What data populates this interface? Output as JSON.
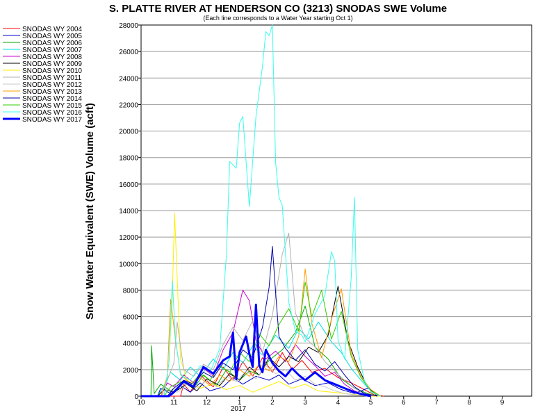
{
  "chart_data": {
    "type": "line",
    "title": "S. PLATTE RIVER AT HENDERSON CO (3213) SNODAS SWE Volume",
    "subtitle": "(Each line corresponds to a Water Year starting Oct 1)",
    "ylabel": "Snow Water Equivalent (SWE) Volume (acft)",
    "xlabel": "",
    "ylim": [
      0,
      28000
    ],
    "yticks": [
      0,
      2000,
      4000,
      6000,
      8000,
      10000,
      12000,
      14000,
      16000,
      18000,
      20000,
      22000,
      24000,
      26000,
      28000
    ],
    "xlim": [
      10,
      21.9
    ],
    "xticks": [
      {
        "v": 10,
        "label": "10"
      },
      {
        "v": 11,
        "label": "11"
      },
      {
        "v": 12,
        "label": "12"
      },
      {
        "v": 13,
        "label": "1"
      },
      {
        "v": 14,
        "label": "2"
      },
      {
        "v": 15,
        "label": "3"
      },
      {
        "v": 16,
        "label": "4"
      },
      {
        "v": 17,
        "label": "5"
      },
      {
        "v": 18,
        "label": "6"
      },
      {
        "v": 19,
        "label": "7"
      },
      {
        "v": 20,
        "label": "8"
      },
      {
        "v": 21,
        "label": "9"
      }
    ],
    "xsublabel": "2017",
    "grid": "horizontal",
    "legend": "left",
    "series": [
      {
        "name": "SNODAS WY 2004",
        "color": "#ff0000",
        "width": 1,
        "x": [
          10,
          11.2,
          11.3,
          11.5,
          11.8,
          12.2,
          12.5,
          12.8,
          13.1,
          13.4,
          13.7,
          14.0,
          14.3,
          14.6,
          14.9,
          15.2,
          15.6,
          16.0,
          16.4,
          16.8,
          17.1,
          17.4
        ],
        "y": [
          0,
          0,
          900,
          300,
          1600,
          700,
          2200,
          1200,
          2600,
          1500,
          2900,
          1800,
          3300,
          2000,
          2700,
          1800,
          2100,
          1400,
          1000,
          500,
          100,
          0
        ]
      },
      {
        "name": "SNODAS WY 2005",
        "color": "#0000cc",
        "width": 1,
        "x": [
          10,
          10.5,
          10.6,
          10.9,
          11.2,
          11.5,
          11.8,
          12.1,
          12.5,
          12.8,
          13.1,
          13.5,
          13.9,
          14.2,
          14.5,
          14.9,
          15.3,
          15.7,
          16.1,
          16.5,
          16.9,
          17.3
        ],
        "y": [
          0,
          0,
          600,
          200,
          800,
          300,
          1000,
          400,
          700,
          1400,
          900,
          1500,
          1200,
          1600,
          900,
          1300,
          800,
          1000,
          500,
          200,
          600,
          0
        ]
      },
      {
        "name": "SNODAS WY 2006",
        "color": "#00aa00",
        "width": 1,
        "x": [
          10,
          10.3,
          10.32,
          10.4,
          10.6,
          10.9,
          11.3,
          11.6,
          11.9,
          12.3,
          12.6,
          13.0,
          13.3,
          13.6,
          13.9,
          14.3,
          14.7,
          15.0,
          15.3,
          15.7,
          16.1,
          16.5,
          16.9,
          17.2
        ],
        "y": [
          0,
          0,
          3800,
          200,
          900,
          400,
          1200,
          600,
          1600,
          800,
          2000,
          1200,
          1900,
          1600,
          2700,
          3500,
          4800,
          6800,
          3700,
          2800,
          1300,
          600,
          200,
          0
        ]
      },
      {
        "name": "SNODAS WY 2007",
        "color": "#00dddd",
        "width": 1,
        "x": [
          10,
          10.5,
          10.7,
          10.9,
          11.2,
          11.5,
          11.8,
          12.2,
          12.5,
          12.8,
          13.1,
          13.4,
          13.7,
          14.1,
          14.5,
          14.8,
          15.1,
          15.4,
          15.8,
          16.1,
          16.4,
          16.7,
          17.0,
          17.3
        ],
        "y": [
          0,
          0,
          800,
          1800,
          1200,
          2200,
          1500,
          2800,
          2000,
          3300,
          2500,
          3800,
          3100,
          4600,
          3600,
          5100,
          4300,
          5600,
          4100,
          3300,
          2100,
          1200,
          400,
          0
        ]
      },
      {
        "name": "SNODAS WY 2008",
        "color": "#cc00cc",
        "width": 1,
        "x": [
          10,
          10.6,
          10.8,
          11.0,
          11.3,
          11.6,
          11.9,
          12.2,
          12.5,
          12.8,
          13.1,
          13.3,
          13.5,
          13.8,
          14.1,
          14.4,
          14.7,
          15.0,
          15.3,
          15.6,
          15.9,
          16.2,
          16.5,
          16.8,
          17.1
        ],
        "y": [
          0,
          0,
          1000,
          700,
          1600,
          1000,
          2100,
          1500,
          3500,
          4800,
          8000,
          7200,
          4200,
          2800,
          3400,
          2600,
          3900,
          3000,
          2300,
          1500,
          1800,
          900,
          400,
          100,
          0
        ]
      },
      {
        "name": "SNODAS WY 2009",
        "color": "#000000",
        "width": 1,
        "x": [
          10,
          10.5,
          10.7,
          11.0,
          11.4,
          11.7,
          12.0,
          12.4,
          12.7,
          13.0,
          13.3,
          13.6,
          13.9,
          14.2,
          14.5,
          14.8,
          15.1,
          15.4,
          15.7,
          16.0,
          16.3,
          16.6,
          16.9,
          17.2
        ],
        "y": [
          0,
          0,
          500,
          300,
          900,
          400,
          1300,
          800,
          1700,
          1200,
          2200,
          1600,
          2900,
          2200,
          3000,
          2600,
          3700,
          3300,
          4600,
          8300,
          4200,
          2200,
          700,
          0
        ]
      },
      {
        "name": "SNODAS WY 2010",
        "color": "#ffee00",
        "width": 1,
        "x": [
          10,
          10.7,
          10.85,
          10.95,
          11.02,
          11.1,
          11.2,
          11.4,
          11.8,
          12.2,
          12.6,
          13.0,
          13.4,
          13.8,
          14.2,
          14.6,
          15.0,
          15.4,
          15.8,
          16.2,
          16.6,
          17.0,
          17.3
        ],
        "y": [
          0,
          0,
          2500,
          7500,
          13800,
          9000,
          2800,
          1200,
          600,
          900,
          500,
          800,
          300,
          700,
          1100,
          600,
          900,
          400,
          300,
          200,
          100,
          0,
          0
        ]
      },
      {
        "name": "SNODAS WY 2011",
        "color": "#b0b0b0",
        "width": 1,
        "x": [
          10,
          10.6,
          10.8,
          11.0,
          11.1,
          11.3,
          11.6,
          11.9,
          12.2,
          12.5,
          12.8,
          13.1,
          13.4,
          13.7,
          14.0,
          14.3,
          14.5,
          14.7,
          15.0,
          15.3,
          15.6,
          15.9,
          16.2,
          16.5,
          16.8,
          17.2
        ],
        "y": [
          0,
          0,
          1200,
          2500,
          5600,
          2000,
          1500,
          2400,
          2000,
          3900,
          5200,
          4200,
          5700,
          3300,
          6100,
          10700,
          12300,
          6300,
          4400,
          3700,
          2600,
          1900,
          1200,
          600,
          200,
          0
        ]
      },
      {
        "name": "SNODAS WY 2012",
        "color": "#c8c8c8",
        "width": 1,
        "x": [
          10,
          10.6,
          10.8,
          11.1,
          11.4,
          11.7,
          12.0,
          12.3,
          12.6,
          12.9,
          13.2,
          13.5,
          13.8,
          14.1,
          14.4,
          14.7,
          15.0,
          15.3,
          15.6,
          15.9,
          16.2,
          16.5,
          16.9
        ],
        "y": [
          0,
          0,
          500,
          300,
          900,
          600,
          1200,
          700,
          1500,
          1100,
          1900,
          1300,
          2300,
          1700,
          2000,
          1200,
          1500,
          900,
          700,
          400,
          200,
          100,
          0
        ]
      },
      {
        "name": "SNODAS WY 2013",
        "color": "#ff9900",
        "width": 1,
        "x": [
          10,
          10.6,
          10.8,
          10.9,
          11.05,
          11.2,
          11.5,
          11.8,
          12.1,
          12.4,
          12.7,
          13.0,
          13.3,
          13.6,
          13.9,
          14.2,
          14.5,
          14.8,
          15.0,
          15.2,
          15.5,
          15.8,
          16.1,
          16.4,
          16.7,
          17.0,
          17.3
        ],
        "y": [
          0,
          0,
          1500,
          7300,
          4200,
          1700,
          900,
          1400,
          800,
          1600,
          1100,
          2000,
          1500,
          2400,
          1900,
          3000,
          2600,
          4500,
          9600,
          5500,
          2900,
          5800,
          8100,
          3200,
          1500,
          500,
          0
        ]
      },
      {
        "name": "SNODAS WY 2014",
        "color": "#0000aa",
        "width": 1,
        "x": [
          10,
          10.8,
          11.0,
          11.3,
          11.6,
          11.9,
          12.2,
          12.5,
          12.8,
          13.1,
          13.4,
          13.7,
          13.9,
          14.0,
          14.1,
          14.2,
          14.4,
          14.7,
          15.0,
          15.3,
          15.6,
          15.9,
          16.2,
          16.5,
          16.8,
          17.2
        ],
        "y": [
          0,
          0,
          600,
          1200,
          900,
          1800,
          1400,
          2500,
          2000,
          3500,
          2900,
          5200,
          8200,
          11300,
          7800,
          4500,
          3600,
          2700,
          3500,
          2400,
          1900,
          2600,
          1600,
          700,
          200,
          0
        ]
      },
      {
        "name": "SNODAS WY 2015",
        "color": "#33cc00",
        "width": 1,
        "x": [
          10,
          10.7,
          10.9,
          11.2,
          11.5,
          11.8,
          12.1,
          12.4,
          12.7,
          13.0,
          13.3,
          13.6,
          13.9,
          14.2,
          14.5,
          14.8,
          15.0,
          15.2,
          15.5,
          15.8,
          16.1,
          16.4,
          16.7,
          17.0,
          17.3
        ],
        "y": [
          0,
          0,
          700,
          1100,
          800,
          1700,
          1200,
          2300,
          1800,
          3300,
          2600,
          4700,
          3800,
          5400,
          6600,
          4900,
          8600,
          6000,
          8000,
          4300,
          6400,
          3000,
          1400,
          400,
          0
        ]
      },
      {
        "name": "SNODAS WY 2016",
        "color": "#33ffee",
        "width": 1,
        "x": [
          10,
          10.7,
          10.85,
          10.95,
          11.05,
          11.2,
          11.5,
          11.8,
          12.1,
          12.4,
          12.6,
          12.7,
          12.9,
          13.0,
          13.1,
          13.3,
          13.5,
          13.7,
          13.8,
          13.9,
          14.0,
          14.1,
          14.2,
          14.3,
          14.5,
          14.7,
          14.9,
          15.0,
          15.3,
          15.6,
          15.8,
          15.9,
          16.0,
          16.2,
          16.4,
          16.5,
          16.6,
          16.8,
          17.0,
          17.3
        ],
        "y": [
          0,
          0,
          2500,
          8700,
          4300,
          1600,
          1200,
          2300,
          1800,
          3600,
          10700,
          17700,
          17200,
          20600,
          21100,
          14300,
          21100,
          24900,
          27500,
          27200,
          28000,
          17600,
          15000,
          14400,
          7100,
          4900,
          4600,
          4100,
          6200,
          7600,
          10900,
          10200,
          4200,
          2800,
          8900,
          15000,
          3500,
          1200,
          300,
          0
        ]
      },
      {
        "name": "SNODAS WY 2017",
        "color": "#0000ff",
        "width": 3,
        "x": [
          10,
          10.85,
          11.0,
          11.3,
          11.6,
          11.9,
          12.2,
          12.5,
          12.7,
          12.8,
          12.9,
          13.0,
          13.2,
          13.3,
          13.4,
          13.5,
          13.6,
          13.7,
          13.8,
          14.0,
          14.2,
          14.4,
          14.6,
          14.8,
          15.0,
          15.3,
          15.6,
          15.9,
          16.2,
          16.5,
          16.8,
          17.0
        ],
        "y": [
          0,
          0,
          300,
          1100,
          700,
          2200,
          1700,
          2700,
          3000,
          4800,
          1300,
          3300,
          4500,
          3200,
          2200,
          6900,
          2300,
          1800,
          3500,
          2500,
          1900,
          1500,
          2100,
          1600,
          1200,
          1800,
          1200,
          900,
          600,
          300,
          100,
          0
        ]
      }
    ]
  }
}
